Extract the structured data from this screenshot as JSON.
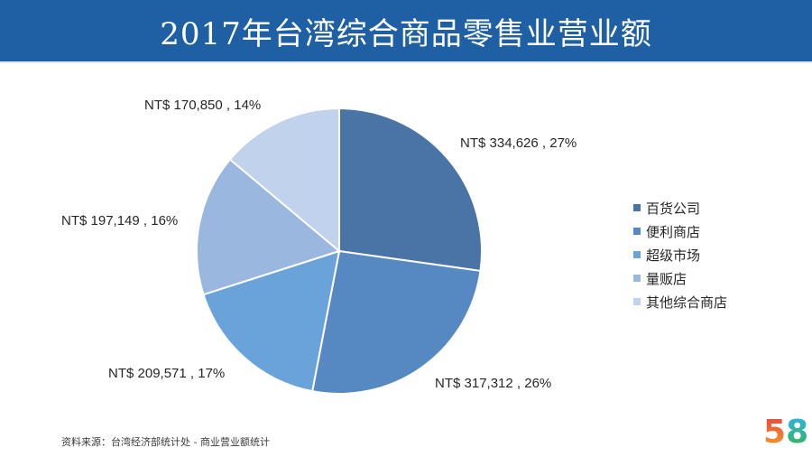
{
  "title": "2017年台湾综合商品零售业营业额",
  "source": "资料来源：台湾经济部统计处 - 商业营业额统计",
  "logo": {
    "digit1": "5",
    "digit2": "8"
  },
  "colors": {
    "title_bar": "#1f5fa3",
    "slices": [
      "#4a73a6",
      "#5689c1",
      "#6aa2da",
      "#9ab7e0",
      "#c1d2ec"
    ],
    "logo_5": [
      "#e8463b",
      "#f3a12b"
    ],
    "logo_8": [
      "#2bb3e8",
      "#39b54a"
    ]
  },
  "chart_data": {
    "type": "pie",
    "categories": [
      "百货公司",
      "便利商店",
      "超级市场",
      "量贩店",
      "其他综合商店"
    ],
    "values": [
      334626,
      317312,
      209571,
      197149,
      170850
    ],
    "percents": [
      27,
      26,
      17,
      16,
      14
    ],
    "data_labels": [
      "NT$ 334,626 , 27%",
      "NT$ 317,312 , 26%",
      "NT$ 209,571 , 17%",
      "NT$ 197,149 , 16%",
      "NT$ 170,850 , 14%"
    ],
    "start_angle": "12 o'clock",
    "direction": "clockwise",
    "legend_position": "right"
  }
}
